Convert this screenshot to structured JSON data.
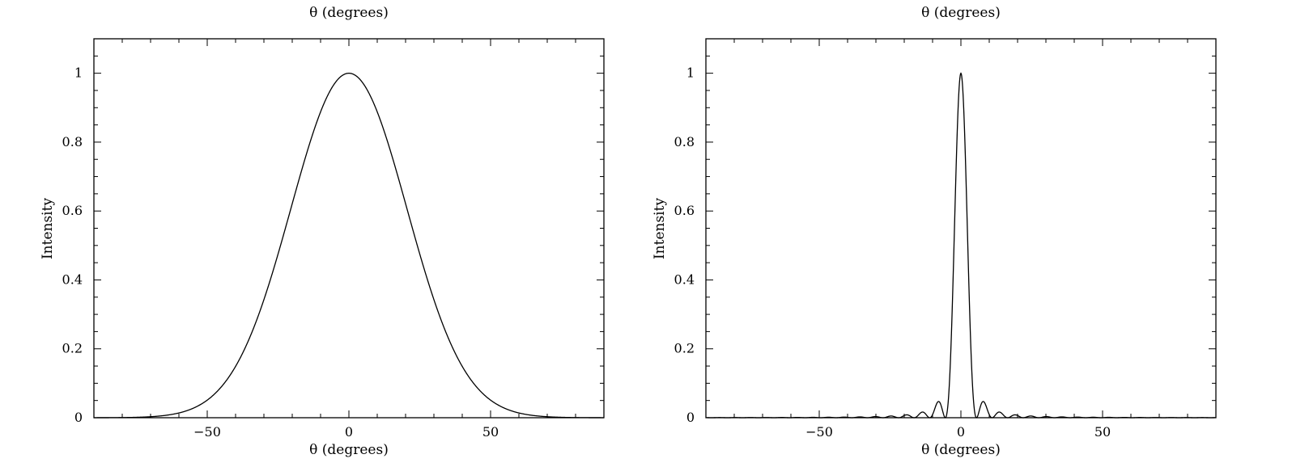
{
  "chart_data": [
    {
      "type": "line",
      "function": "gaussian",
      "sigma_deg": 20.5,
      "xlabel": "θ (degrees)",
      "top_label": "θ (degrees)",
      "ylabel": "Intensity",
      "xlim": [
        -90,
        90
      ],
      "ylim": [
        0,
        1.1
      ],
      "x_ticks": [
        -50,
        0,
        50
      ],
      "x_tick_labels": [
        "−50",
        "0",
        "50"
      ],
      "y_ticks": [
        0,
        0.2,
        0.4,
        0.6,
        0.8,
        1
      ],
      "y_tick_labels": [
        "0",
        "0.2",
        "0.4",
        "0.6",
        "0.8",
        "1"
      ],
      "x_minor_step": 10,
      "y_minor_step": 0.05,
      "grid": false,
      "series": [
        {
          "x": [
            -90,
            -70,
            -60,
            -50,
            -40,
            -30,
            -20,
            -10,
            0,
            10,
            20,
            30,
            40,
            50,
            60,
            70,
            90
          ],
          "y": [
            0.0,
            0.003,
            0.014,
            0.051,
            0.149,
            0.343,
            0.622,
            0.888,
            1.0,
            0.888,
            0.622,
            0.343,
            0.149,
            0.051,
            0.014,
            0.003,
            0.0
          ]
        }
      ]
    },
    {
      "type": "line",
      "function": "sinc_squared",
      "first_zero_deg": 5.5,
      "xlabel": "θ (degrees)",
      "top_label": "θ (degrees)",
      "ylabel": "Intensity",
      "xlim": [
        -90,
        90
      ],
      "ylim": [
        0,
        1.1
      ],
      "x_ticks": [
        -50,
        0,
        50
      ],
      "x_tick_labels": [
        "−50",
        "0",
        "50"
      ],
      "y_ticks": [
        0,
        0.2,
        0.4,
        0.6,
        0.8,
        1
      ],
      "y_tick_labels": [
        "0",
        "0.2",
        "0.4",
        "0.6",
        "0.8",
        "1"
      ],
      "x_minor_step": 10,
      "y_minor_step": 0.05,
      "grid": false,
      "series": [
        {
          "x": [
            -16.5,
            -11,
            -8.3,
            -5.5,
            0,
            5.5,
            8.3,
            11,
            16.5
          ],
          "y": [
            0.0,
            0.0,
            0.047,
            0.0,
            1.0,
            0.0,
            0.047,
            0.0,
            0.0
          ]
        }
      ]
    }
  ]
}
